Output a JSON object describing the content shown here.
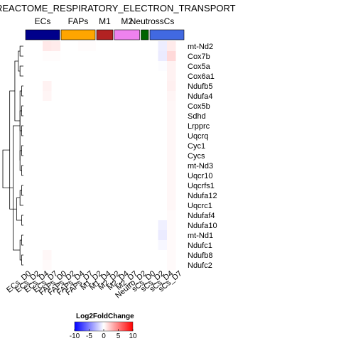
{
  "chart_data": {
    "type": "heatmap",
    "title": "REACTOME_RESPIRATORY_ELECTRON_TRANSPORT",
    "rows": [
      "mt-Nd2",
      "Cox7b",
      "Cox5a",
      "Cox6a1",
      "Ndufb5",
      "Ndufa4",
      "Cox5b",
      "Sdhd",
      "Lrpprc",
      "Uqcrq",
      "Cyc1",
      "Cycs",
      "mt-Nd3",
      "Uqcr10",
      "Uqcrfs1",
      "Ndufa12",
      "Uqcrc1",
      "Ndufaf4",
      "Ndufa10",
      "mt-Nd1",
      "Ndufc1",
      "Ndufb8",
      "Ndufc2"
    ],
    "columns": [
      "ECs_D0",
      "ECs_D2",
      "ECs_D4",
      "ECs_D7",
      "FAPs_D0",
      "FAPs_D2",
      "FAPs_D4",
      "FAPs_D7",
      "M1_D2",
      "M1_D4",
      "M2_D2",
      "M2_D4",
      "M2_D7",
      "Neutro_D2",
      "sCs_D0",
      "sCs_D2",
      "sCs_D4",
      "sCs_D7"
    ],
    "column_groups": [
      {
        "label": "ECs",
        "count": 4,
        "color": "#00008b"
      },
      {
        "label": "FAPs",
        "count": 4,
        "color": "#ffa500"
      },
      {
        "label": "M1",
        "count": 2,
        "color": "#b22222"
      },
      {
        "label": "M2",
        "count": 3,
        "color": "#ee82ee"
      },
      {
        "label": "Neutros",
        "count": 1,
        "color": "#006400"
      },
      {
        "label": "sCs",
        "count": 4,
        "color": "#4169e1"
      }
    ],
    "values": [
      [
        0.0,
        0.0,
        0.9,
        0.8,
        0.0,
        0.0,
        0.1,
        0.1,
        0.0,
        0.0,
        0.0,
        0.0,
        0.0,
        0.0,
        0.0,
        -0.7,
        0.8,
        0.0
      ],
      [
        0.0,
        0.0,
        0.1,
        0.1,
        0.0,
        0.0,
        0.0,
        0.0,
        0.0,
        0.0,
        0.0,
        0.0,
        0.0,
        0.0,
        0.0,
        -0.8,
        1.5,
        0.0
      ],
      [
        0.0,
        0.0,
        0.0,
        0.0,
        0.0,
        0.0,
        0.0,
        0.0,
        0.0,
        0.0,
        0.0,
        0.0,
        0.0,
        0.0,
        0.0,
        -0.1,
        0.5,
        0.0
      ],
      [
        0.0,
        0.0,
        0.0,
        0.0,
        0.0,
        0.0,
        0.0,
        0.0,
        0.0,
        0.0,
        0.0,
        0.0,
        0.0,
        0.0,
        0.0,
        0.0,
        0.5,
        0.0
      ],
      [
        0.0,
        0.0,
        0.5,
        0.0,
        0.0,
        0.0,
        0.0,
        0.0,
        0.0,
        0.0,
        0.0,
        0.0,
        0.0,
        0.0,
        0.0,
        0.0,
        0.6,
        0.0
      ],
      [
        0.0,
        0.0,
        0.4,
        0.0,
        0.0,
        0.0,
        0.0,
        0.0,
        0.0,
        0.0,
        0.0,
        0.0,
        0.0,
        0.0,
        0.0,
        0.0,
        0.4,
        0.0
      ],
      [
        0.0,
        0.0,
        0.0,
        0.0,
        0.0,
        0.0,
        0.0,
        0.0,
        0.0,
        0.0,
        0.0,
        0.0,
        0.0,
        0.0,
        0.0,
        0.0,
        0.3,
        0.0
      ],
      [
        0.0,
        0.0,
        0.0,
        0.0,
        0.0,
        0.0,
        0.0,
        0.0,
        0.0,
        0.0,
        0.0,
        0.0,
        0.0,
        0.0,
        0.0,
        0.0,
        0.3,
        0.0
      ],
      [
        0.0,
        0.0,
        0.0,
        0.0,
        0.0,
        0.0,
        0.0,
        0.0,
        0.0,
        0.0,
        0.0,
        0.0,
        0.0,
        0.0,
        0.0,
        0.0,
        0.3,
        0.0
      ],
      [
        0.0,
        0.0,
        0.0,
        0.0,
        0.0,
        0.0,
        0.0,
        0.0,
        0.0,
        0.0,
        0.0,
        0.0,
        0.0,
        0.0,
        0.0,
        0.0,
        0.3,
        0.0
      ],
      [
        0.0,
        0.0,
        0.0,
        0.0,
        0.0,
        0.0,
        0.0,
        0.0,
        0.0,
        0.0,
        0.0,
        0.0,
        0.0,
        0.0,
        0.0,
        0.0,
        0.3,
        0.0
      ],
      [
        0.0,
        0.0,
        0.0,
        0.0,
        0.0,
        0.0,
        0.0,
        0.0,
        0.0,
        0.0,
        0.0,
        0.0,
        0.0,
        0.0,
        0.0,
        0.0,
        0.3,
        0.0
      ],
      [
        0.0,
        0.0,
        0.0,
        0.0,
        0.0,
        0.0,
        0.0,
        0.0,
        0.0,
        0.0,
        0.0,
        0.0,
        0.0,
        0.0,
        0.0,
        0.0,
        0.3,
        0.0
      ],
      [
        0.0,
        0.0,
        0.0,
        0.0,
        0.0,
        0.0,
        0.0,
        0.0,
        0.0,
        0.0,
        0.0,
        0.0,
        0.0,
        0.0,
        0.0,
        0.0,
        0.3,
        0.0
      ],
      [
        0.0,
        0.0,
        0.0,
        0.0,
        0.0,
        0.0,
        0.0,
        0.0,
        0.0,
        0.0,
        0.0,
        0.0,
        0.0,
        0.0,
        0.0,
        0.0,
        0.3,
        0.0
      ],
      [
        0.0,
        0.0,
        0.0,
        0.0,
        0.0,
        0.0,
        0.0,
        0.0,
        0.0,
        0.0,
        0.0,
        0.0,
        0.0,
        0.0,
        0.0,
        0.0,
        0.3,
        0.0
      ],
      [
        0.0,
        0.0,
        0.0,
        0.0,
        0.0,
        0.0,
        0.0,
        0.0,
        0.0,
        0.0,
        0.0,
        0.0,
        0.0,
        0.0,
        0.0,
        0.0,
        0.3,
        0.0
      ],
      [
        0.0,
        0.0,
        0.0,
        0.0,
        0.0,
        0.0,
        0.0,
        0.0,
        0.0,
        0.0,
        0.0,
        0.0,
        0.0,
        0.0,
        0.0,
        0.0,
        0.2,
        0.0
      ],
      [
        0.0,
        0.0,
        0.0,
        0.0,
        0.0,
        0.0,
        0.0,
        0.0,
        0.0,
        0.0,
        0.0,
        0.0,
        0.0,
        0.0,
        0.0,
        -0.6,
        0.2,
        0.0
      ],
      [
        0.0,
        0.0,
        0.0,
        0.0,
        0.0,
        0.0,
        0.0,
        0.0,
        0.0,
        0.0,
        0.0,
        0.0,
        0.0,
        0.0,
        0.0,
        -0.8,
        0.2,
        0.0
      ],
      [
        0.0,
        0.0,
        0.0,
        0.0,
        0.0,
        0.0,
        0.0,
        0.0,
        0.0,
        0.0,
        0.0,
        0.0,
        0.0,
        0.0,
        0.0,
        -0.3,
        0.2,
        0.0
      ],
      [
        0.0,
        0.0,
        0.3,
        0.0,
        0.0,
        0.0,
        0.0,
        0.0,
        0.0,
        0.0,
        0.0,
        0.0,
        0.0,
        0.0,
        0.0,
        0.0,
        0.2,
        0.0
      ],
      [
        0.0,
        0.0,
        0.2,
        0.0,
        0.0,
        0.0,
        0.0,
        0.0,
        0.0,
        0.0,
        0.0,
        0.0,
        0.0,
        0.0,
        0.0,
        0.0,
        0.2,
        0.0
      ]
    ],
    "row_dendrogram": [
      [
        4,
        5,
        0.05
      ],
      [
        6,
        7,
        0.05
      ],
      [
        8,
        9,
        0.05
      ],
      [
        10,
        11,
        0.05
      ],
      [
        12,
        13,
        0.05
      ],
      [
        14,
        15,
        0.05
      ],
      [
        17,
        18,
        0.05
      ],
      [
        19,
        20,
        0.05
      ],
      [
        21,
        22,
        0.05
      ],
      [
        2,
        3,
        0.1
      ],
      [
        0,
        1,
        0.1
      ],
      [
        26,
        27,
        0.1
      ],
      [
        28,
        16,
        0.1
      ],
      [
        30,
        31,
        0.1
      ],
      [
        24,
        25,
        0.1
      ],
      [
        32,
        33,
        0.15
      ],
      [
        23,
        34,
        0.1
      ],
      [
        35,
        29,
        0.2
      ],
      [
        38,
        37,
        0.25
      ],
      [
        39,
        36,
        0.3
      ],
      [
        40,
        41,
        0.4
      ],
      [
        42,
        43,
        0.6
      ]
    ],
    "legend": {
      "title": "Log2FoldChange",
      "ticks": [
        -10,
        -5,
        0,
        5,
        10
      ],
      "colors": [
        "#0000ff",
        "#ffffff",
        "#ff0000"
      ]
    }
  }
}
